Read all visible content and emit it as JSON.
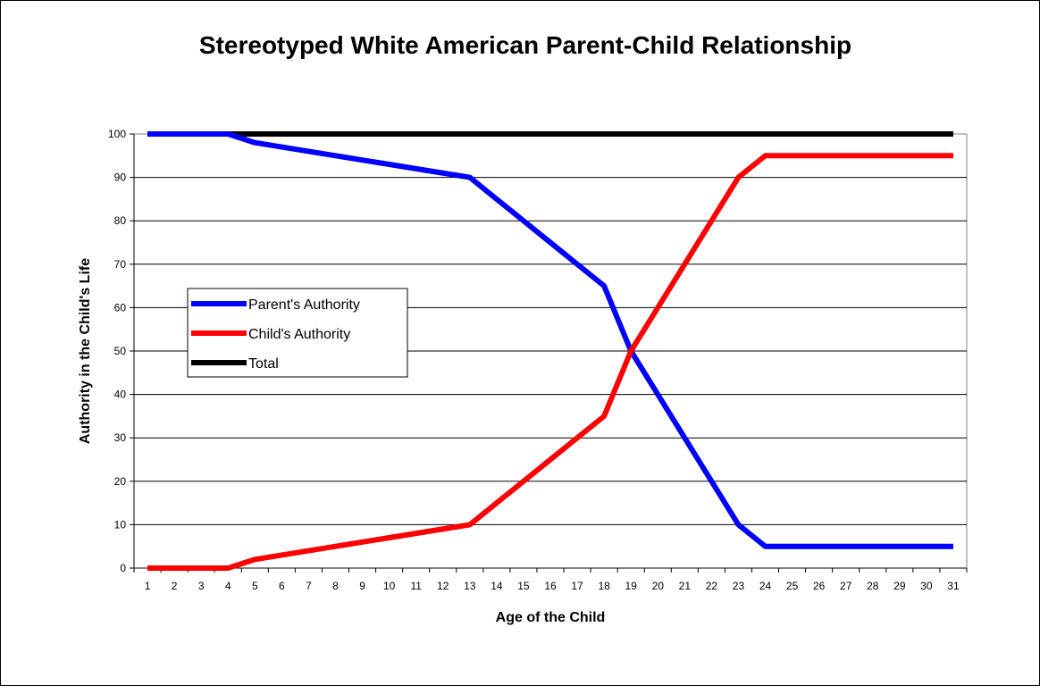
{
  "chart_data": {
    "type": "line",
    "title": "Stereotyped White American Parent-Child Relationship",
    "xlabel": "Age of the Child",
    "ylabel": "Authority in the Child's Life",
    "categories": [
      "1",
      "2",
      "3",
      "4",
      "5",
      "6",
      "7",
      "8",
      "9",
      "10",
      "11",
      "12",
      "13",
      "14",
      "15",
      "16",
      "17",
      "18",
      "19",
      "20",
      "21",
      "22",
      "23",
      "24",
      "25",
      "26",
      "27",
      "28",
      "29",
      "30",
      "31"
    ],
    "ylim": [
      0,
      100
    ],
    "yticks": [
      "0",
      "10",
      "20",
      "30",
      "40",
      "50",
      "60",
      "70",
      "80",
      "90",
      "100"
    ],
    "grid": true,
    "legend_position": "left",
    "series": [
      {
        "name": "Parent's Authority",
        "color": "#0000ff",
        "values": [
          100,
          100,
          100,
          100,
          98,
          97,
          96,
          95,
          94,
          93,
          92,
          91,
          90,
          85,
          80,
          75,
          70,
          65,
          50,
          40,
          30,
          20,
          10,
          5,
          5,
          5,
          5,
          5,
          5,
          5,
          5
        ]
      },
      {
        "name": "Child's Authority",
        "color": "#ff0000",
        "values": [
          0,
          0,
          0,
          0,
          2,
          3,
          4,
          5,
          6,
          7,
          8,
          9,
          10,
          15,
          20,
          25,
          30,
          35,
          50,
          60,
          70,
          80,
          90,
          95,
          95,
          95,
          95,
          95,
          95,
          95,
          95
        ]
      },
      {
        "name": "Total",
        "color": "#000000",
        "values": [
          100,
          100,
          100,
          100,
          100,
          100,
          100,
          100,
          100,
          100,
          100,
          100,
          100,
          100,
          100,
          100,
          100,
          100,
          100,
          100,
          100,
          100,
          100,
          100,
          100,
          100,
          100,
          100,
          100,
          100,
          100
        ]
      }
    ]
  }
}
